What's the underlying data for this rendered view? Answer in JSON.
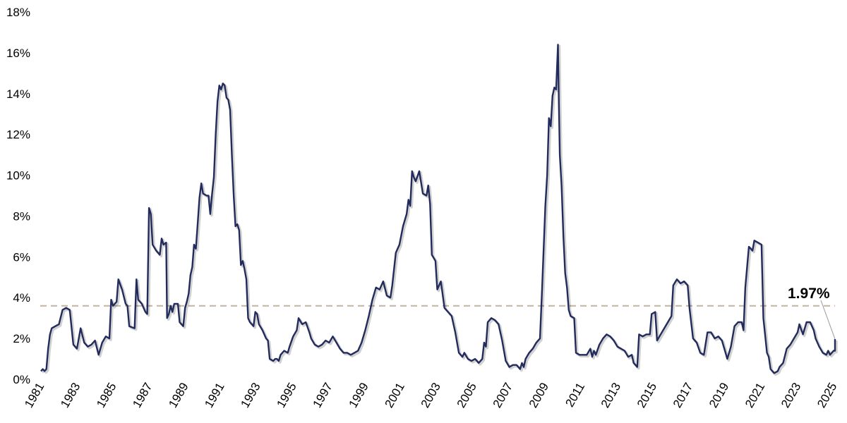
{
  "chart_data": {
    "type": "line",
    "title": "",
    "xlabel": "",
    "ylabel": "",
    "xlim": [
      1981,
      2025.2
    ],
    "ylim": [
      0,
      18
    ],
    "grid": false,
    "y_tick_values": [
      0,
      2,
      4,
      6,
      8,
      10,
      12,
      14,
      16,
      18
    ],
    "y_tick_labels": [
      "0%",
      "2%",
      "4%",
      "6%",
      "8%",
      "10%",
      "12%",
      "14%",
      "16%",
      "18%"
    ],
    "x_tick_values": [
      1981,
      1983,
      1985,
      1987,
      1989,
      1991,
      1993,
      1995,
      1997,
      1999,
      2001,
      2003,
      2005,
      2007,
      2009,
      2011,
      2013,
      2015,
      2017,
      2019,
      2021,
      2023,
      2025
    ],
    "x_tick_labels": [
      "1981",
      "1983",
      "1985",
      "1987",
      "1989",
      "1991",
      "1993",
      "1995",
      "1997",
      "1999",
      "2001",
      "2003",
      "2005",
      "2007",
      "2009",
      "2011",
      "2013",
      "2015",
      "2017",
      "2019",
      "2021",
      "2023",
      "2025"
    ],
    "reference_line": {
      "value": 3.6,
      "color": "#C4B8A8",
      "style": "dashed"
    },
    "annotation": {
      "text": "1.97%",
      "x": 2025.1,
      "y": 1.97
    },
    "series": [
      {
        "color": "#222B5C",
        "points": [
          [
            1981.0,
            0.4
          ],
          [
            1981.1,
            0.5
          ],
          [
            1981.2,
            0.4
          ],
          [
            1981.3,
            0.5
          ],
          [
            1981.4,
            1.5
          ],
          [
            1981.5,
            2.2
          ],
          [
            1981.6,
            2.5
          ],
          [
            1981.8,
            2.6
          ],
          [
            1982.0,
            2.7
          ],
          [
            1982.2,
            3.4
          ],
          [
            1982.4,
            3.5
          ],
          [
            1982.6,
            3.4
          ],
          [
            1982.8,
            1.7
          ],
          [
            1983.0,
            1.5
          ],
          [
            1983.2,
            2.5
          ],
          [
            1983.4,
            1.8
          ],
          [
            1983.6,
            1.6
          ],
          [
            1983.8,
            1.7
          ],
          [
            1984.0,
            1.9
          ],
          [
            1984.2,
            1.2
          ],
          [
            1984.4,
            1.8
          ],
          [
            1984.6,
            2.1
          ],
          [
            1984.8,
            2.0
          ],
          [
            1984.9,
            3.9
          ],
          [
            1985.0,
            3.6
          ],
          [
            1985.2,
            3.8
          ],
          [
            1985.3,
            4.9
          ],
          [
            1985.5,
            4.4
          ],
          [
            1985.7,
            3.7
          ],
          [
            1985.8,
            3.6
          ],
          [
            1985.9,
            2.6
          ],
          [
            1986.2,
            2.5
          ],
          [
            1986.3,
            4.9
          ],
          [
            1986.4,
            3.9
          ],
          [
            1986.6,
            3.7
          ],
          [
            1986.8,
            3.3
          ],
          [
            1986.9,
            3.2
          ],
          [
            1987.0,
            8.4
          ],
          [
            1987.1,
            8.1
          ],
          [
            1987.2,
            6.6
          ],
          [
            1987.4,
            6.3
          ],
          [
            1987.6,
            6.1
          ],
          [
            1987.7,
            6.9
          ],
          [
            1987.8,
            6.6
          ],
          [
            1987.95,
            6.7
          ],
          [
            1988.0,
            3.0
          ],
          [
            1988.1,
            3.2
          ],
          [
            1988.2,
            3.6
          ],
          [
            1988.3,
            3.3
          ],
          [
            1988.4,
            3.7
          ],
          [
            1988.6,
            3.7
          ],
          [
            1988.7,
            2.8
          ],
          [
            1988.9,
            2.6
          ],
          [
            1989.0,
            3.5
          ],
          [
            1989.1,
            3.8
          ],
          [
            1989.2,
            4.2
          ],
          [
            1989.3,
            5.1
          ],
          [
            1989.4,
            5.5
          ],
          [
            1989.5,
            6.6
          ],
          [
            1989.6,
            6.4
          ],
          [
            1989.7,
            7.6
          ],
          [
            1989.8,
            8.9
          ],
          [
            1989.9,
            9.6
          ],
          [
            1990.0,
            9.1
          ],
          [
            1990.2,
            9.0
          ],
          [
            1990.3,
            9.0
          ],
          [
            1990.4,
            8.1
          ],
          [
            1990.5,
            9.1
          ],
          [
            1990.6,
            9.9
          ],
          [
            1990.7,
            12.0
          ],
          [
            1990.8,
            13.6
          ],
          [
            1990.9,
            14.4
          ],
          [
            1991.0,
            14.2
          ],
          [
            1991.1,
            14.5
          ],
          [
            1991.2,
            14.4
          ],
          [
            1991.3,
            13.8
          ],
          [
            1991.4,
            13.7
          ],
          [
            1991.5,
            13.2
          ],
          [
            1991.6,
            11.0
          ],
          [
            1991.7,
            9.0
          ],
          [
            1991.8,
            7.5
          ],
          [
            1991.9,
            7.6
          ],
          [
            1992.0,
            7.3
          ],
          [
            1992.1,
            5.6
          ],
          [
            1992.2,
            5.8
          ],
          [
            1992.3,
            5.4
          ],
          [
            1992.4,
            4.9
          ],
          [
            1992.5,
            3.0
          ],
          [
            1992.6,
            2.8
          ],
          [
            1992.8,
            2.6
          ],
          [
            1992.9,
            3.3
          ],
          [
            1993.0,
            3.2
          ],
          [
            1993.1,
            2.7
          ],
          [
            1993.3,
            2.4
          ],
          [
            1993.5,
            2.0
          ],
          [
            1993.6,
            1.9
          ],
          [
            1993.7,
            1.0
          ],
          [
            1993.9,
            0.9
          ],
          [
            1994.0,
            1.0
          ],
          [
            1994.1,
            1.0
          ],
          [
            1994.2,
            0.9
          ],
          [
            1994.3,
            1.2
          ],
          [
            1994.5,
            1.4
          ],
          [
            1994.7,
            1.3
          ],
          [
            1994.8,
            1.6
          ],
          [
            1995.0,
            2.1
          ],
          [
            1995.2,
            2.4
          ],
          [
            1995.3,
            3.0
          ],
          [
            1995.5,
            2.7
          ],
          [
            1995.7,
            2.8
          ],
          [
            1995.9,
            2.3
          ],
          [
            1996.0,
            2.0
          ],
          [
            1996.2,
            1.7
          ],
          [
            1996.4,
            1.6
          ],
          [
            1996.6,
            1.7
          ],
          [
            1996.8,
            1.9
          ],
          [
            1997.0,
            1.8
          ],
          [
            1997.2,
            2.1
          ],
          [
            1997.4,
            1.8
          ],
          [
            1997.6,
            1.5
          ],
          [
            1997.8,
            1.3
          ],
          [
            1998.0,
            1.3
          ],
          [
            1998.2,
            1.2
          ],
          [
            1998.4,
            1.3
          ],
          [
            1998.6,
            1.4
          ],
          [
            1998.8,
            1.8
          ],
          [
            1999.0,
            2.4
          ],
          [
            1999.2,
            3.1
          ],
          [
            1999.4,
            3.9
          ],
          [
            1999.6,
            4.5
          ],
          [
            1999.8,
            4.4
          ],
          [
            2000.0,
            4.8
          ],
          [
            2000.2,
            4.1
          ],
          [
            2000.4,
            4.0
          ],
          [
            2000.5,
            4.6
          ],
          [
            2000.7,
            6.2
          ],
          [
            2000.9,
            6.6
          ],
          [
            2001.1,
            7.5
          ],
          [
            2001.3,
            8.1
          ],
          [
            2001.4,
            8.8
          ],
          [
            2001.5,
            8.5
          ],
          [
            2001.6,
            10.2
          ],
          [
            2001.7,
            9.9
          ],
          [
            2001.8,
            9.7
          ],
          [
            2002.0,
            10.2
          ],
          [
            2002.2,
            9.1
          ],
          [
            2002.4,
            9.0
          ],
          [
            2002.5,
            9.5
          ],
          [
            2002.6,
            8.6
          ],
          [
            2002.7,
            6.1
          ],
          [
            2002.9,
            5.8
          ],
          [
            2003.0,
            4.4
          ],
          [
            2003.2,
            4.8
          ],
          [
            2003.4,
            3.5
          ],
          [
            2003.6,
            3.3
          ],
          [
            2003.8,
            3.1
          ],
          [
            2004.0,
            2.3
          ],
          [
            2004.2,
            1.3
          ],
          [
            2004.4,
            1.1
          ],
          [
            2004.5,
            1.3
          ],
          [
            2004.7,
            1.0
          ],
          [
            2004.9,
            0.9
          ],
          [
            2005.1,
            1.0
          ],
          [
            2005.3,
            0.8
          ],
          [
            2005.5,
            1.0
          ],
          [
            2005.6,
            1.8
          ],
          [
            2005.7,
            1.6
          ],
          [
            2005.8,
            2.8
          ],
          [
            2006.0,
            3.0
          ],
          [
            2006.2,
            2.9
          ],
          [
            2006.4,
            2.7
          ],
          [
            2006.6,
            1.9
          ],
          [
            2006.8,
            0.9
          ],
          [
            2007.0,
            0.6
          ],
          [
            2007.2,
            0.7
          ],
          [
            2007.4,
            0.7
          ],
          [
            2007.6,
            0.5
          ],
          [
            2007.7,
            0.8
          ],
          [
            2007.8,
            0.6
          ],
          [
            2007.9,
            1.0
          ],
          [
            2008.1,
            1.3
          ],
          [
            2008.3,
            1.5
          ],
          [
            2008.5,
            1.8
          ],
          [
            2008.7,
            2.0
          ],
          [
            2008.8,
            4.0
          ],
          [
            2009.0,
            8.5
          ],
          [
            2009.1,
            10.0
          ],
          [
            2009.2,
            12.8
          ],
          [
            2009.3,
            12.4
          ],
          [
            2009.4,
            13.9
          ],
          [
            2009.5,
            14.3
          ],
          [
            2009.6,
            14.2
          ],
          [
            2009.7,
            16.4
          ],
          [
            2009.75,
            13.5
          ],
          [
            2009.8,
            11.0
          ],
          [
            2009.9,
            9.5
          ],
          [
            2010.0,
            7.0
          ],
          [
            2010.1,
            5.2
          ],
          [
            2010.2,
            4.5
          ],
          [
            2010.3,
            3.4
          ],
          [
            2010.4,
            3.1
          ],
          [
            2010.6,
            3.0
          ],
          [
            2010.7,
            1.3
          ],
          [
            2010.9,
            1.2
          ],
          [
            2011.1,
            1.2
          ],
          [
            2011.3,
            1.2
          ],
          [
            2011.5,
            1.5
          ],
          [
            2011.6,
            1.1
          ],
          [
            2011.7,
            1.4
          ],
          [
            2011.8,
            1.2
          ],
          [
            2012.0,
            1.7
          ],
          [
            2012.2,
            2.0
          ],
          [
            2012.4,
            2.2
          ],
          [
            2012.6,
            2.1
          ],
          [
            2012.8,
            1.9
          ],
          [
            2013.0,
            1.6
          ],
          [
            2013.2,
            1.5
          ],
          [
            2013.4,
            1.4
          ],
          [
            2013.6,
            1.1
          ],
          [
            2013.8,
            1.2
          ],
          [
            2013.9,
            0.8
          ],
          [
            2014.0,
            0.7
          ],
          [
            2014.1,
            0.6
          ],
          [
            2014.2,
            2.2
          ],
          [
            2014.4,
            2.1
          ],
          [
            2014.6,
            2.2
          ],
          [
            2014.8,
            2.2
          ],
          [
            2014.9,
            3.2
          ],
          [
            2015.1,
            3.3
          ],
          [
            2015.2,
            1.9
          ],
          [
            2015.4,
            2.2
          ],
          [
            2015.6,
            2.5
          ],
          [
            2015.8,
            2.8
          ],
          [
            2016.0,
            3.1
          ],
          [
            2016.1,
            4.6
          ],
          [
            2016.3,
            4.9
          ],
          [
            2016.5,
            4.7
          ],
          [
            2016.7,
            4.8
          ],
          [
            2016.9,
            4.6
          ],
          [
            2017.0,
            3.5
          ],
          [
            2017.2,
            2.0
          ],
          [
            2017.4,
            1.8
          ],
          [
            2017.6,
            1.3
          ],
          [
            2017.8,
            1.2
          ],
          [
            2018.0,
            2.3
          ],
          [
            2018.2,
            2.3
          ],
          [
            2018.4,
            2.0
          ],
          [
            2018.6,
            2.1
          ],
          [
            2018.8,
            1.9
          ],
          [
            2019.0,
            1.3
          ],
          [
            2019.1,
            1.0
          ],
          [
            2019.3,
            1.6
          ],
          [
            2019.5,
            2.6
          ],
          [
            2019.7,
            2.8
          ],
          [
            2019.9,
            2.8
          ],
          [
            2020.0,
            2.4
          ],
          [
            2020.1,
            4.5
          ],
          [
            2020.3,
            6.5
          ],
          [
            2020.5,
            6.3
          ],
          [
            2020.6,
            6.8
          ],
          [
            2020.8,
            6.7
          ],
          [
            2021.0,
            6.6
          ],
          [
            2021.1,
            3.0
          ],
          [
            2021.3,
            1.3
          ],
          [
            2021.4,
            1.1
          ],
          [
            2021.5,
            0.5
          ],
          [
            2021.7,
            0.3
          ],
          [
            2021.9,
            0.4
          ],
          [
            2022.0,
            0.6
          ],
          [
            2022.2,
            0.8
          ],
          [
            2022.4,
            1.5
          ],
          [
            2022.6,
            1.7
          ],
          [
            2022.8,
            2.0
          ],
          [
            2023.0,
            2.3
          ],
          [
            2023.1,
            2.7
          ],
          [
            2023.3,
            2.2
          ],
          [
            2023.5,
            2.8
          ],
          [
            2023.7,
            2.8
          ],
          [
            2023.9,
            2.4
          ],
          [
            2024.0,
            2.0
          ],
          [
            2024.2,
            1.6
          ],
          [
            2024.4,
            1.3
          ],
          [
            2024.6,
            1.2
          ],
          [
            2024.7,
            1.4
          ],
          [
            2024.8,
            1.2
          ],
          [
            2025.0,
            1.4
          ],
          [
            2025.2,
            1.4
          ],
          [
            2025.4,
            1.6
          ],
          [
            2025.6,
            1.5
          ],
          [
            2025.8,
            1.8
          ],
          [
            2026.0,
            1.97
          ]
        ]
      }
    ]
  }
}
